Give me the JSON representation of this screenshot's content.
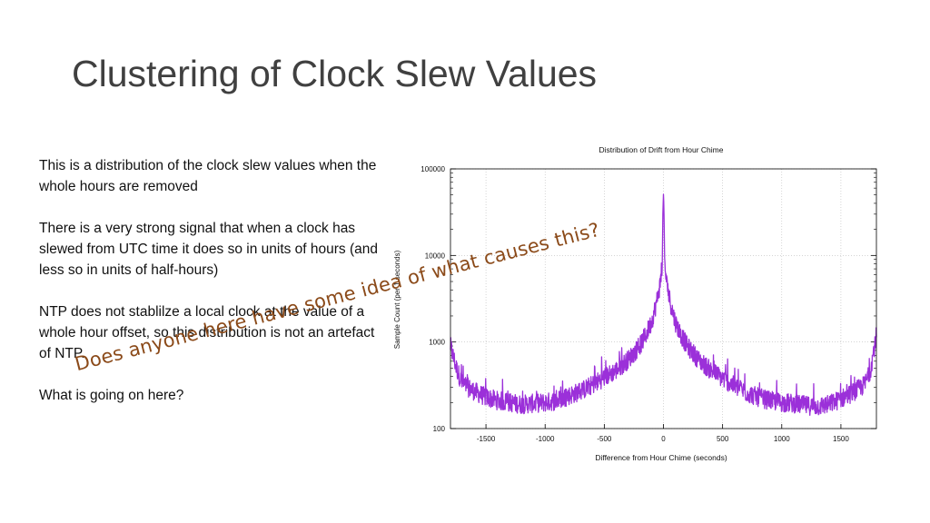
{
  "slide": {
    "title": "Clustering of Clock Slew Values",
    "paragraphs": [
      "This is a distribution of the clock slew values when the whole hours are removed",
      "There is a very strong signal that when a clock has slewed from UTC time it does so in units of hours (and less so in units of half-hours)",
      "NTP does not stablilze a local clock at the value of a whole hour offset, so this distribution is not an artefact of NTP.",
      "What is going on here?"
    ],
    "overlay_text": "Does anyone here have some idea of what causes this?"
  },
  "colors": {
    "series": "#9b30d9",
    "overlay": "#8b4a19",
    "title": "#404040"
  },
  "chart_data": {
    "type": "line",
    "title": "Distribution of Drift from Hour Chime",
    "xlabel": "Difference from Hour Chime (seconds)",
    "ylabel": "Sample Count (per 1 seconds)",
    "xlim": [
      -1800,
      1800
    ],
    "ylim": [
      100,
      100000
    ],
    "yscale": "log",
    "grid": true,
    "x_ticks": [
      -1500,
      -1000,
      -500,
      0,
      500,
      1000,
      1500
    ],
    "y_ticks": [
      100,
      1000,
      10000,
      100000
    ],
    "y_tick_labels": [
      "100",
      "1000",
      "10000",
      "100000"
    ],
    "series": [
      {
        "x": [
          -1800,
          -1750,
          -1700,
          -1600,
          -1500,
          -1400,
          -1300,
          -1200,
          -1100,
          -1000,
          -900,
          -800,
          -700,
          -600,
          -500,
          -400,
          -300,
          -200,
          -150,
          -100,
          -60,
          -30,
          -10,
          -5,
          0,
          5,
          10,
          30,
          60,
          100,
          150,
          200,
          300,
          400,
          500,
          600,
          700,
          800,
          900,
          1000,
          1100,
          1200,
          1300,
          1400,
          1500,
          1600,
          1700,
          1750,
          1800
        ],
        "y": [
          900,
          500,
          330,
          270,
          230,
          210,
          200,
          190,
          195,
          200,
          210,
          240,
          270,
          320,
          390,
          470,
          620,
          900,
          1200,
          1700,
          2800,
          4500,
          7000,
          30000,
          55000,
          30000,
          8000,
          4500,
          2800,
          1700,
          1200,
          900,
          620,
          470,
          380,
          310,
          260,
          230,
          210,
          200,
          195,
          185,
          180,
          190,
          220,
          260,
          320,
          480,
          1200
        ]
      }
    ]
  }
}
